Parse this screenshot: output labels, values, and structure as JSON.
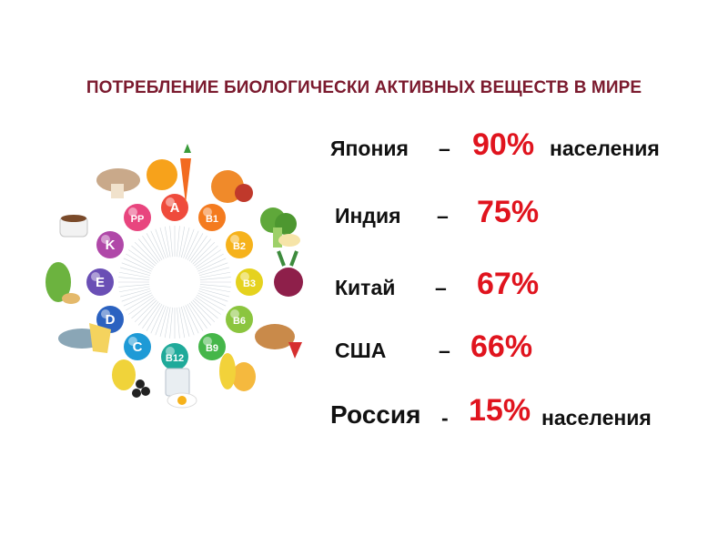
{
  "title": "ПОТРЕБЛЕНИЕ БИОЛОГИЧЕСКИ АКТИВНЫХ ВЕЩЕСТВ В МИРЕ",
  "rows": [
    {
      "country": "Япония",
      "dash": "–",
      "percent": "90%",
      "suffix": "населения"
    },
    {
      "country": "Индия",
      "dash": "–",
      "percent": "75%",
      "suffix": ""
    },
    {
      "country": "Китай",
      "dash": "–",
      "percent": "67%",
      "suffix": ""
    },
    {
      "country": "США",
      "dash": "–",
      "percent": "66%",
      "suffix": ""
    },
    {
      "country": "Россия",
      "dash": "-",
      "percent": "15%",
      "suffix": "населения"
    }
  ],
  "vitamins": [
    {
      "label": "A",
      "color": "#ef4b3c"
    },
    {
      "label": "B1",
      "color": "#f47b1f"
    },
    {
      "label": "B2",
      "color": "#f6b21b"
    },
    {
      "label": "B3",
      "color": "#e5d21e"
    },
    {
      "label": "B6",
      "color": "#8bc53f"
    },
    {
      "label": "B9",
      "color": "#45b649"
    },
    {
      "label": "B12",
      "color": "#1faa9a"
    },
    {
      "label": "C",
      "color": "#1e9ad6"
    },
    {
      "label": "D",
      "color": "#2b62c0"
    },
    {
      "label": "E",
      "color": "#6a4fb5"
    },
    {
      "label": "K",
      "color": "#b048a8"
    },
    {
      "label": "PP",
      "color": "#e8457e"
    }
  ],
  "colors": {
    "title": "#7b1a2e",
    "percent": "#e0141e",
    "text": "#111111"
  }
}
